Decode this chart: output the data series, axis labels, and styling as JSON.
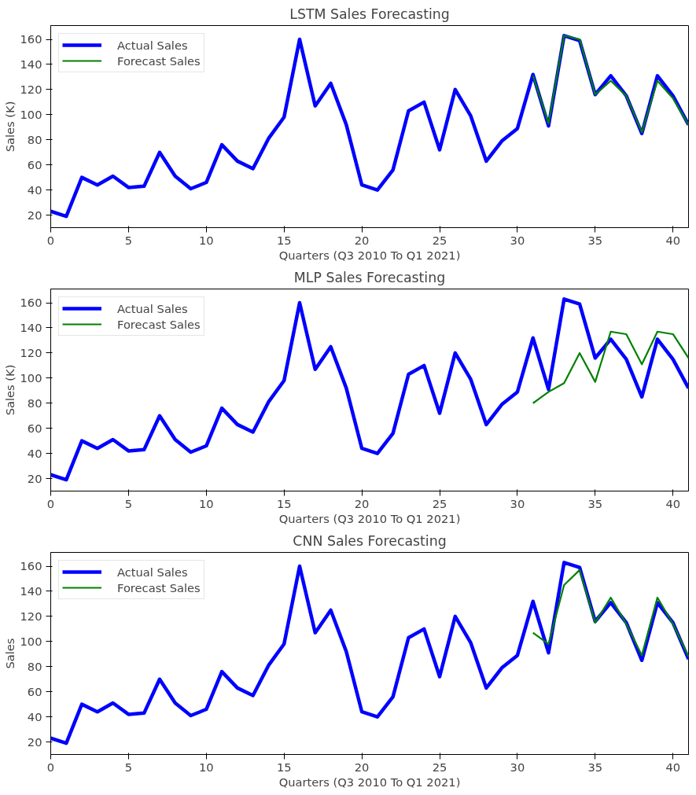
{
  "chart_data": [
    {
      "type": "line",
      "title": "LSTM Sales Forecasting",
      "xlabel": "Quarters (Q3 2010 To Q1 2021)",
      "ylabel": "Sales (K)",
      "xlim": [
        0,
        41
      ],
      "ylim": [
        10,
        171
      ],
      "xticks": [
        0,
        5,
        10,
        15,
        20,
        25,
        30,
        35,
        40
      ],
      "yticks": [
        20,
        40,
        60,
        80,
        100,
        120,
        140,
        160
      ],
      "grid": false,
      "legend": "top left",
      "marker": "none",
      "line_style": "solid",
      "series": [
        {
          "name": "Actual Sales",
          "color": "#0000ff",
          "x": [
            0,
            1,
            2,
            3,
            4,
            5,
            6,
            7,
            8,
            9,
            10,
            11,
            12,
            13,
            14,
            15,
            16,
            17,
            18,
            19,
            20,
            21,
            22,
            23,
            24,
            25,
            26,
            27,
            28,
            29,
            30,
            31,
            32,
            33,
            34,
            35,
            36,
            37,
            38,
            39,
            40,
            41
          ],
          "values": [
            23,
            19,
            50,
            44,
            51,
            42,
            43,
            70,
            51,
            41,
            46,
            76,
            63,
            57,
            81,
            98,
            160,
            107,
            125,
            92,
            44,
            40,
            56,
            103,
            110,
            72,
            120,
            99,
            63,
            79,
            89,
            132,
            91,
            163,
            159,
            116,
            131,
            115,
            85,
            131,
            115,
            92
          ]
        },
        {
          "name": "Forecast Sales",
          "color": "#008000",
          "x": [
            31,
            32,
            33,
            34,
            35,
            36,
            37,
            38,
            39,
            40,
            41
          ],
          "values": [
            131,
            93,
            163,
            160,
            116,
            127,
            115,
            86,
            127,
            113,
            92
          ]
        }
      ]
    },
    {
      "type": "line",
      "title": "MLP Sales Forecasting",
      "xlabel": "Quarters (Q3 2010 To Q1 2021)",
      "ylabel": "Sales (K)",
      "xlim": [
        0,
        41
      ],
      "ylim": [
        10,
        171
      ],
      "xticks": [
        0,
        5,
        10,
        15,
        20,
        25,
        30,
        35,
        40
      ],
      "yticks": [
        20,
        40,
        60,
        80,
        100,
        120,
        140,
        160
      ],
      "grid": false,
      "legend": "top left",
      "marker": "none",
      "line_style": "solid",
      "series": [
        {
          "name": "Actual Sales",
          "color": "#0000ff",
          "x": [
            0,
            1,
            2,
            3,
            4,
            5,
            6,
            7,
            8,
            9,
            10,
            11,
            12,
            13,
            14,
            15,
            16,
            17,
            18,
            19,
            20,
            21,
            22,
            23,
            24,
            25,
            26,
            27,
            28,
            29,
            30,
            31,
            32,
            33,
            34,
            35,
            36,
            37,
            38,
            39,
            40,
            41
          ],
          "values": [
            23,
            19,
            50,
            44,
            51,
            42,
            43,
            70,
            51,
            41,
            46,
            76,
            63,
            57,
            81,
            98,
            160,
            107,
            125,
            92,
            44,
            40,
            56,
            103,
            110,
            72,
            120,
            99,
            63,
            79,
            89,
            132,
            91,
            163,
            159,
            116,
            131,
            115,
            85,
            131,
            115,
            92
          ]
        },
        {
          "name": "Forecast Sales",
          "color": "#008000",
          "x": [
            31,
            32,
            33,
            34,
            35,
            36,
            37,
            38,
            39,
            40,
            41
          ],
          "values": [
            80,
            89,
            96,
            120,
            97,
            137,
            135,
            111,
            137,
            135,
            116
          ]
        }
      ]
    },
    {
      "type": "line",
      "title": "CNN Sales Forecasting",
      "xlabel": "Quarters (Q3 2010 To Q1 2021)",
      "ylabel": "Sales",
      "xlim": [
        0,
        41
      ],
      "ylim": [
        10,
        171
      ],
      "xticks": [
        0,
        5,
        10,
        15,
        20,
        25,
        30,
        35,
        40
      ],
      "yticks": [
        20,
        40,
        60,
        80,
        100,
        120,
        140,
        160
      ],
      "grid": false,
      "legend": "top left",
      "marker": "none",
      "line_style": "solid",
      "series": [
        {
          "name": "Actual Sales",
          "color": "#0000ff",
          "x": [
            0,
            1,
            2,
            3,
            4,
            5,
            6,
            7,
            8,
            9,
            10,
            11,
            12,
            13,
            14,
            15,
            16,
            17,
            18,
            19,
            20,
            21,
            22,
            23,
            24,
            25,
            26,
            27,
            28,
            29,
            30,
            31,
            32,
            33,
            34,
            35,
            36,
            37,
            38,
            39,
            40,
            41
          ],
          "values": [
            23,
            19,
            50,
            44,
            51,
            42,
            43,
            70,
            51,
            41,
            46,
            76,
            63,
            57,
            81,
            98,
            160,
            107,
            125,
            92,
            44,
            40,
            56,
            103,
            110,
            72,
            120,
            99,
            63,
            79,
            89,
            132,
            91,
            163,
            159,
            116,
            131,
            115,
            85,
            131,
            115,
            86
          ]
        },
        {
          "name": "Forecast Sales",
          "color": "#008000",
          "x": [
            31,
            32,
            33,
            34,
            35,
            36,
            37,
            38,
            39,
            40,
            41
          ],
          "values": [
            107,
            98,
            145,
            157,
            115,
            135,
            114,
            89,
            135,
            114,
            88
          ]
        }
      ]
    }
  ]
}
